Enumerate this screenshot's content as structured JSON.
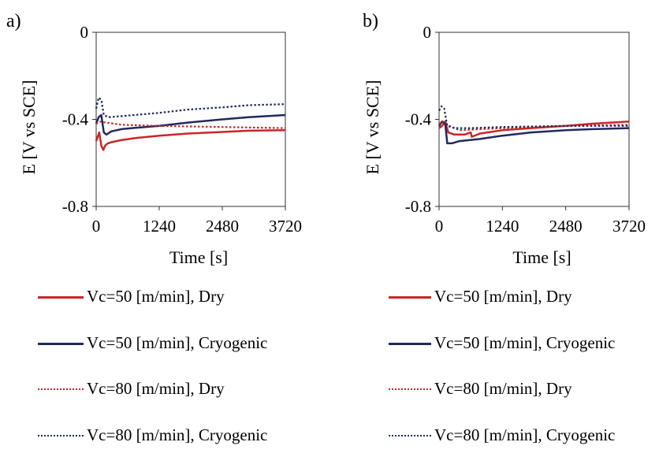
{
  "chart_data": [
    {
      "type": "line",
      "panel_label": "a)",
      "xlabel": "Time [s]",
      "ylabel": "E [V vs SCE]",
      "xlim": [
        0,
        3720
      ],
      "ylim": [
        -0.8,
        0
      ],
      "x_ticks": [
        0,
        1240,
        2480,
        3720
      ],
      "y_ticks": [
        0,
        -0.4,
        -0.8
      ],
      "x_tick_labels": [
        "0",
        "1240",
        "2480",
        "3720"
      ],
      "y_tick_labels": [
        "0",
        "-0.4",
        "-0.8"
      ],
      "grid": false,
      "legend_position": "bottom",
      "series": [
        {
          "name": "Vc=50 [m/min], Dry",
          "color": "#c8262a",
          "dash": "solid",
          "x": [
            0,
            60,
            100,
            140,
            180,
            230,
            300,
            500,
            800,
            1240,
            1800,
            2480,
            3000,
            3720
          ],
          "y": [
            -0.5,
            -0.46,
            -0.52,
            -0.54,
            -0.52,
            -0.51,
            -0.505,
            -0.495,
            -0.485,
            -0.475,
            -0.465,
            -0.458,
            -0.452,
            -0.45
          ]
        },
        {
          "name": "Vc=50 [m/min], Cryogenic",
          "color": "#1f2a5c",
          "dash": "solid",
          "x": [
            0,
            50,
            100,
            150,
            200,
            300,
            400,
            500,
            700,
            1240,
            1800,
            2480,
            3000,
            3720
          ],
          "y": [
            -0.42,
            -0.39,
            -0.38,
            -0.46,
            -0.47,
            -0.455,
            -0.45,
            -0.445,
            -0.44,
            -0.43,
            -0.415,
            -0.4,
            -0.39,
            -0.38
          ]
        },
        {
          "name": "Vc=80 [m/min], Dry",
          "color": "#c8262a",
          "dash": "dotted",
          "x": [
            0,
            80,
            200,
            500,
            1240,
            2480,
            3720
          ],
          "y": [
            -0.42,
            -0.41,
            -0.415,
            -0.425,
            -0.43,
            -0.435,
            -0.44
          ]
        },
        {
          "name": "Vc=80 [m/min], Cryogenic",
          "color": "#1f2a5c",
          "dash": "dotted",
          "x": [
            0,
            50,
            100,
            150,
            250,
            500,
            1240,
            1800,
            2480,
            3000,
            3720
          ],
          "y": [
            -0.35,
            -0.3,
            -0.31,
            -0.38,
            -0.39,
            -0.385,
            -0.37,
            -0.355,
            -0.345,
            -0.335,
            -0.33
          ]
        }
      ]
    },
    {
      "type": "line",
      "panel_label": "b)",
      "xlabel": "Time [s]",
      "ylabel": "E [V vs SCE]",
      "xlim": [
        0,
        3720
      ],
      "ylim": [
        -0.8,
        0
      ],
      "x_ticks": [
        0,
        1240,
        2480,
        3720
      ],
      "y_ticks": [
        0,
        -0.4,
        -0.8
      ],
      "x_tick_labels": [
        "0",
        "1240",
        "2480",
        "3720"
      ],
      "y_tick_labels": [
        "0",
        "-0.4",
        "-0.8"
      ],
      "grid": false,
      "legend_position": "bottom",
      "series": [
        {
          "name": "Vc=50 [m/min], Dry",
          "color": "#c8262a",
          "dash": "solid",
          "x": [
            0,
            60,
            120,
            180,
            300,
            500,
            620,
            640,
            800,
            1240,
            1800,
            2480,
            3000,
            3720
          ],
          "y": [
            -0.44,
            -0.43,
            -0.41,
            -0.46,
            -0.47,
            -0.47,
            -0.46,
            -0.48,
            -0.465,
            -0.45,
            -0.44,
            -0.43,
            -0.42,
            -0.41
          ]
        },
        {
          "name": "Vc=50 [m/min], Cryogenic",
          "color": "#1f2a5c",
          "dash": "solid",
          "x": [
            0,
            60,
            120,
            160,
            250,
            400,
            800,
            1240,
            1800,
            2480,
            3000,
            3720
          ],
          "y": [
            -0.43,
            -0.41,
            -0.42,
            -0.51,
            -0.51,
            -0.5,
            -0.49,
            -0.475,
            -0.46,
            -0.45,
            -0.445,
            -0.44
          ]
        },
        {
          "name": "Vc=80 [m/min], Dry",
          "color": "#c8262a",
          "dash": "dotted",
          "x": [
            0,
            80,
            200,
            400,
            1240,
            2480,
            3720
          ],
          "y": [
            -0.42,
            -0.41,
            -0.43,
            -0.45,
            -0.44,
            -0.43,
            -0.425
          ]
        },
        {
          "name": "Vc=80 [m/min], Cryogenic",
          "color": "#1f2a5c",
          "dash": "dotted",
          "x": [
            0,
            50,
            100,
            160,
            300,
            600,
            1240,
            2480,
            3720
          ],
          "y": [
            -0.36,
            -0.34,
            -0.35,
            -0.43,
            -0.44,
            -0.44,
            -0.435,
            -0.43,
            -0.43
          ]
        }
      ]
    }
  ]
}
